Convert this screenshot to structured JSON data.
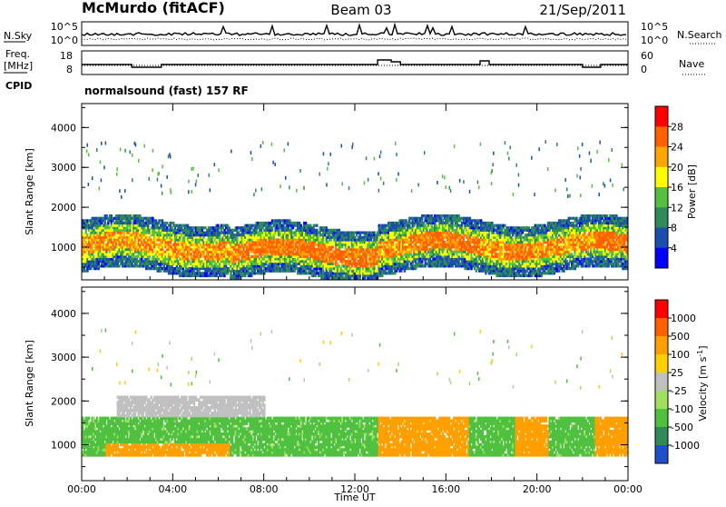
{
  "header": {
    "title": "McMurdo (fitACF)",
    "beam": "Beam 03",
    "date": "21/Sep/2011"
  },
  "noise_panel": {
    "left_label": "N.Sky",
    "right_label": "N.Search",
    "left_ticks": [
      "10^5",
      "10^0"
    ],
    "right_ticks": [
      "10^5",
      "10^0"
    ]
  },
  "freq_panel": {
    "left_label_line1": "Freq.",
    "left_label_line2": "[MHz]",
    "right_label": "Nave",
    "left_ticks": [
      "18",
      "8"
    ],
    "right_ticks": [
      "60",
      "0"
    ]
  },
  "cpid": {
    "label": "CPID",
    "value": "normalsound (fast) 157 RF"
  },
  "colors": {
    "power_scale": [
      "#0000ff",
      "#1a4faf",
      "#2e8b57",
      "#55c040",
      "#ffff00",
      "#ffa500",
      "#ff6000",
      "#ff0000"
    ],
    "velocity_scale": [
      "#2050c8",
      "#2e8b57",
      "#50c040",
      "#a0e060",
      "#c0c0c0",
      "#ffd000",
      "#ffa000",
      "#ff6000",
      "#ff0000"
    ]
  },
  "chart_data": [
    {
      "type": "heatmap",
      "panel": "power",
      "ylabel": "Slant Range [km]",
      "ylim": [
        180,
        4600
      ],
      "yticks": [
        "1000",
        "2000",
        "3000",
        "4000"
      ],
      "xlim": [
        "00:00",
        "24:00"
      ],
      "colorbar_label": "Power [dB]",
      "colorbar_ticks": [
        "4",
        "8",
        "12",
        "16",
        "20",
        "24",
        "28"
      ],
      "colorbar_range": [
        0,
        30
      ],
      "colors": [
        "#0000ff",
        "#1a4faf",
        "#2e8b57",
        "#55c040",
        "#ffff00",
        "#ffa500",
        "#ff6000",
        "#ff0000"
      ]
    },
    {
      "type": "heatmap",
      "panel": "velocity",
      "ylabel": "Slant Range [km]",
      "ylim": [
        180,
        4600
      ],
      "yticks": [
        "1000",
        "2000",
        "3000",
        "4000"
      ],
      "xlim": [
        "00:00",
        "24:00"
      ],
      "xlabel": "Time UT",
      "xticks": [
        "00:00",
        "04:00",
        "08:00",
        "12:00",
        "16:00",
        "20:00",
        "00:00"
      ],
      "colorbar_label": "Velocity [m s^-1]",
      "colorbar_ticks": [
        "1000",
        "500",
        "100",
        "25",
        "-25",
        "-100",
        "-500",
        "-1000"
      ],
      "colors": [
        "#2050c8",
        "#2e8b57",
        "#50c040",
        "#a0e060",
        "#c0c0c0",
        "#ffd000",
        "#ffa000",
        "#ff6000",
        "#ff0000"
      ]
    }
  ]
}
